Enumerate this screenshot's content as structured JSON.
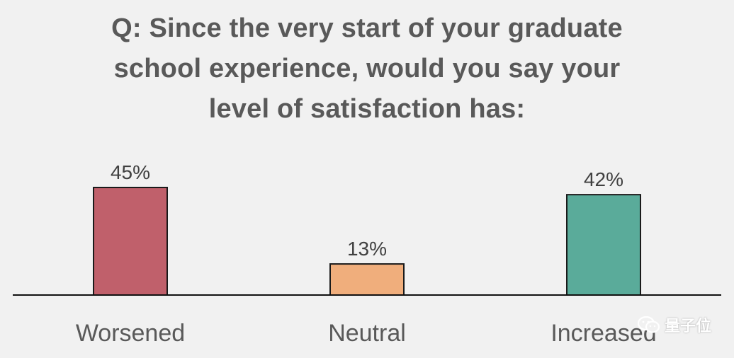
{
  "chart_data": {
    "type": "bar",
    "title_lines": [
      "Q: Since the very start of your graduate",
      "school experience, would you say your",
      "level of satisfaction has:"
    ],
    "categories": [
      "Worsened",
      "Neutral",
      "Increased"
    ],
    "values": [
      45,
      13,
      42
    ],
    "value_labels": [
      "45%",
      "13%",
      "42%"
    ],
    "colors": [
      "#c0606b",
      "#f0ae7c",
      "#5aab9a"
    ],
    "ylim": [
      0,
      45
    ],
    "grid": false,
    "legend": "none"
  },
  "watermark": {
    "text": "量子位",
    "icon": "wechat-icon"
  }
}
